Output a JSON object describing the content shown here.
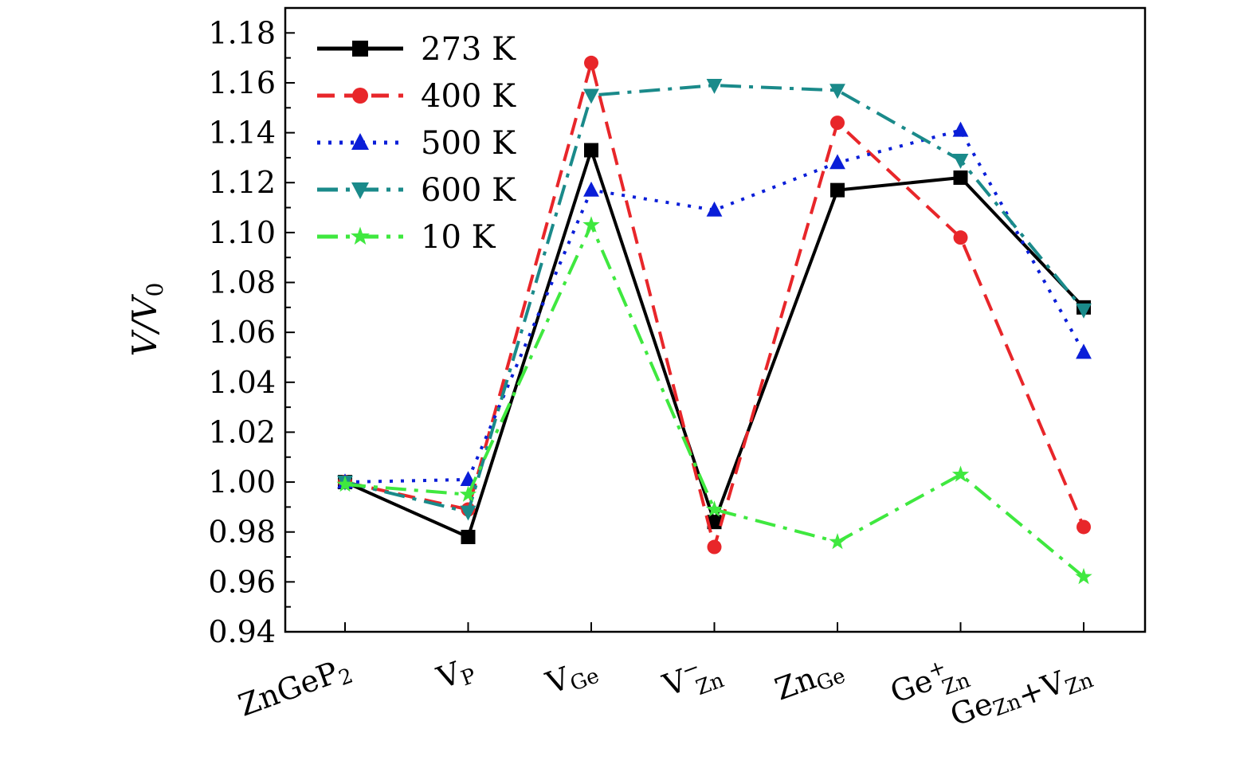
{
  "chart_data": {
    "type": "line",
    "categories": [
      {
        "base": "ZnGeP",
        "sub": "2",
        "sup": ""
      },
      {
        "base": "V",
        "sub": "P",
        "sup": ""
      },
      {
        "base": "V",
        "sub": "Ge",
        "sup": ""
      },
      {
        "base": "V",
        "sub": "Zn",
        "sup": "−"
      },
      {
        "base": "Zn",
        "sub": "Ge",
        "sup": ""
      },
      {
        "base": "Ge",
        "sub": "Zn",
        "sup": "+"
      },
      {
        "base": "Ge",
        "sub": "Zn",
        "sup": "",
        "tail": "+V",
        "tail_sub": "Zn"
      }
    ],
    "ylabel": "V/V0",
    "ylabel_main": "V/V",
    "ylabel_sub": "0",
    "ylim": [
      0.94,
      1.19
    ],
    "yticks": [
      0.94,
      0.96,
      0.98,
      1.0,
      1.02,
      1.04,
      1.06,
      1.08,
      1.1,
      1.12,
      1.14,
      1.16,
      1.18
    ],
    "ytick_labels": [
      "0.94",
      "0.96",
      "0.98",
      "1.00",
      "1.02",
      "1.04",
      "1.06",
      "1.08",
      "1.10",
      "1.12",
      "1.14",
      "1.16",
      "1.18"
    ],
    "legend_position": "top-left",
    "series": [
      {
        "name": "273 K",
        "color": "#000000",
        "marker": "square",
        "dash": "solid",
        "values": [
          1.0,
          0.978,
          1.133,
          0.984,
          1.117,
          1.122,
          1.07
        ]
      },
      {
        "name": "400 K",
        "color": "#e8262a",
        "marker": "circle",
        "dash": "dash",
        "values": [
          1.0,
          0.989,
          1.168,
          0.974,
          1.144,
          1.098,
          0.982
        ]
      },
      {
        "name": "500 K",
        "color": "#0a1ed8",
        "marker": "triangle-up",
        "dash": "dot",
        "values": [
          1.0,
          1.001,
          1.117,
          1.109,
          1.128,
          1.141,
          1.052
        ]
      },
      {
        "name": "600 K",
        "color": "#1a8a8a",
        "marker": "triangle-down",
        "dash": "dashdot",
        "values": [
          1.0,
          0.988,
          1.155,
          1.159,
          1.157,
          1.129,
          1.069
        ]
      },
      {
        "name": "10 K",
        "color": "#3fe83f",
        "marker": "star",
        "dash": "dashdot",
        "values": [
          0.999,
          0.995,
          1.103,
          0.989,
          0.976,
          1.003,
          0.962
        ]
      }
    ]
  }
}
